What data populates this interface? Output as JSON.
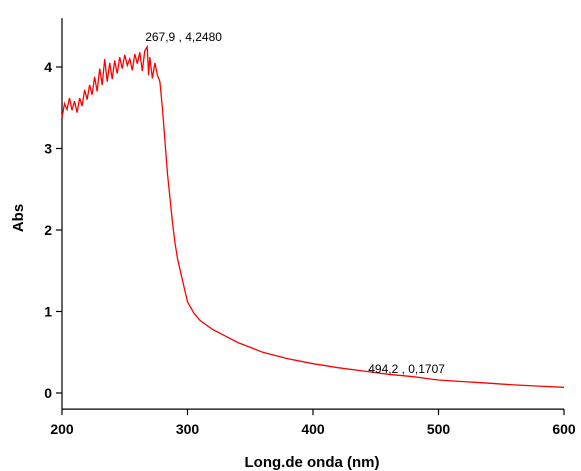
{
  "chart_data": {
    "type": "line",
    "xlabel": "Long.de onda (nm)",
    "ylabel": "Abs",
    "xlim": [
      200,
      600
    ],
    "ylim": [
      -0.1,
      4.6
    ],
    "x_ticks": [
      "200",
      "300",
      "400",
      "500",
      "600"
    ],
    "y_ticks": [
      "0",
      "1",
      "2",
      "3",
      "4"
    ],
    "grid": false,
    "legend": "none",
    "series": [
      {
        "color": "#ff0000",
        "points": [
          [
            200,
            3.38
          ],
          [
            202,
            3.55
          ],
          [
            204,
            3.48
          ],
          [
            206,
            3.62
          ],
          [
            208,
            3.47
          ],
          [
            210,
            3.58
          ],
          [
            212,
            3.44
          ],
          [
            214,
            3.62
          ],
          [
            216,
            3.52
          ],
          [
            218,
            3.72
          ],
          [
            220,
            3.6
          ],
          [
            222,
            3.78
          ],
          [
            224,
            3.66
          ],
          [
            226,
            3.88
          ],
          [
            228,
            3.7
          ],
          [
            230,
            3.98
          ],
          [
            232,
            3.78
          ],
          [
            234,
            4.1
          ],
          [
            236,
            3.82
          ],
          [
            238,
            4.05
          ],
          [
            240,
            3.85
          ],
          [
            242,
            4.08
          ],
          [
            244,
            3.92
          ],
          [
            246,
            4.12
          ],
          [
            248,
            3.98
          ],
          [
            250,
            4.15
          ],
          [
            252,
            4.02
          ],
          [
            254,
            4.1
          ],
          [
            256,
            3.96
          ],
          [
            258,
            4.16
          ],
          [
            260,
            4.04
          ],
          [
            262,
            4.18
          ],
          [
            264,
            3.95
          ],
          [
            266,
            4.2
          ],
          [
            267.9,
            4.248
          ],
          [
            269,
            3.9
          ],
          [
            270,
            4.12
          ],
          [
            272,
            3.86
          ],
          [
            274,
            4.05
          ],
          [
            276,
            3.9
          ],
          [
            278,
            3.82
          ],
          [
            280,
            3.5
          ],
          [
            282,
            3.1
          ],
          [
            284,
            2.7
          ],
          [
            286,
            2.4
          ],
          [
            288,
            2.1
          ],
          [
            290,
            1.85
          ],
          [
            292,
            1.65
          ],
          [
            295,
            1.45
          ],
          [
            298,
            1.25
          ],
          [
            300,
            1.12
          ],
          [
            305,
            0.98
          ],
          [
            310,
            0.89
          ],
          [
            320,
            0.78
          ],
          [
            330,
            0.7
          ],
          [
            340,
            0.62
          ],
          [
            350,
            0.56
          ],
          [
            360,
            0.5
          ],
          [
            370,
            0.46
          ],
          [
            380,
            0.42
          ],
          [
            390,
            0.39
          ],
          [
            400,
            0.36
          ],
          [
            420,
            0.31
          ],
          [
            440,
            0.27
          ],
          [
            460,
            0.23
          ],
          [
            480,
            0.2
          ],
          [
            494.2,
            0.1707
          ],
          [
            500,
            0.16
          ],
          [
            520,
            0.14
          ],
          [
            540,
            0.12
          ],
          [
            560,
            0.1
          ],
          [
            580,
            0.085
          ],
          [
            600,
            0.07
          ]
        ]
      }
    ],
    "annotations": [
      {
        "text": "267,9 , 4,2480",
        "x": 267.9,
        "y": 4.248
      },
      {
        "text": "494,2 , 0,1707",
        "x": 494.2,
        "y": 0.1707
      }
    ]
  }
}
